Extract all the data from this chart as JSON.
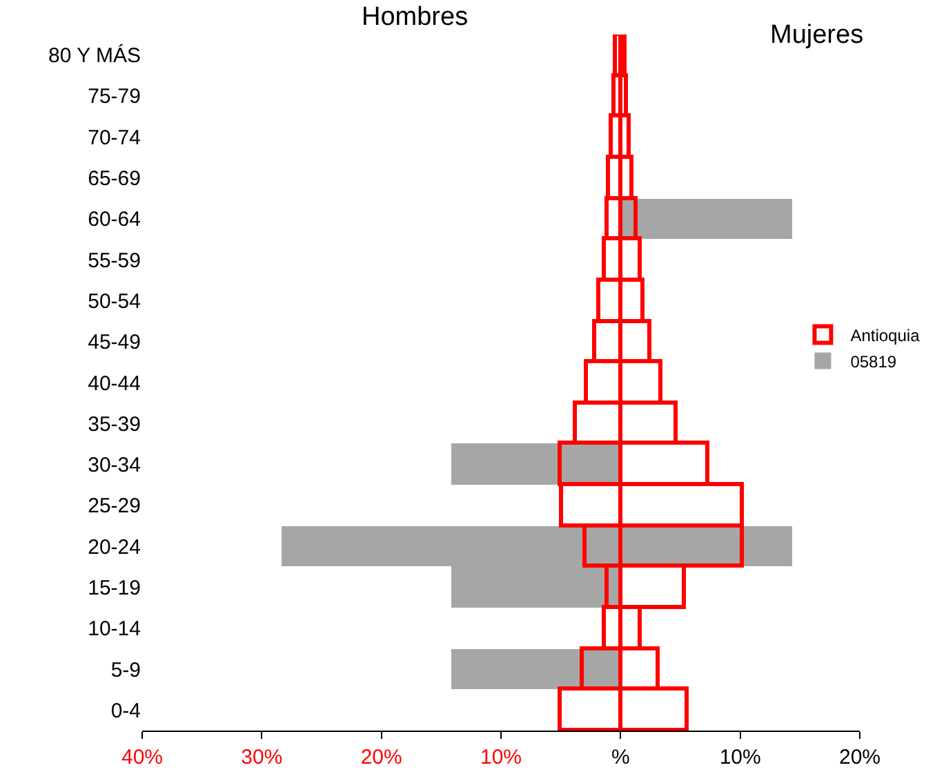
{
  "chart_data": {
    "type": "bar",
    "orientation": "horizontal",
    "annotations": [
      "Hombres",
      "Mujeres"
    ],
    "categories": [
      "80 Y MÁS",
      "75-79",
      "70-74",
      "65-69",
      "60-64",
      "55-59",
      "50-54",
      "45-49",
      "40-44",
      "35-39",
      "30-34",
      "25-29",
      "20-24",
      "15-19",
      "10-14",
      "5-9",
      "0-4"
    ],
    "series": [
      {
        "name": "05819",
        "color": "#a6a6a6",
        "values": [
          null,
          null,
          null,
          null,
          null,
          null,
          null,
          null,
          null,
          null,
          -14.2,
          null,
          -28.4,
          -14.2,
          null,
          -14.2,
          null
        ]
      },
      {
        "color": "#a6a6a6",
        "values": [
          null,
          null,
          null,
          null,
          14.4,
          null,
          null,
          null,
          null,
          null,
          null,
          null,
          14.4,
          null,
          null,
          null,
          null
        ]
      },
      {
        "name": "Antioquia",
        "color": "#ff0000",
        "values": [
          -0.4,
          -0.5,
          -0.8,
          -1.0,
          -1.1,
          -1.4,
          -1.8,
          -2.1,
          -2.9,
          -3.8,
          -5.0,
          -4.9,
          -3.0,
          -1.1,
          -1.3,
          -3.2,
          -5.0
        ]
      },
      {
        "color": "#ff0000",
        "values": [
          0.4,
          0.5,
          0.7,
          1.0,
          1.3,
          1.6,
          1.9,
          2.5,
          3.4,
          4.6,
          7.3,
          10.2,
          10.2,
          5.4,
          1.7,
          3.2,
          5.6
        ]
      }
    ],
    "xlim": [
      -40,
      20
    ],
    "xticks": [
      {
        "value": -40,
        "label": "40%"
      },
      {
        "value": -30,
        "label": "30%"
      },
      {
        "value": -20,
        "label": "20%"
      },
      {
        "value": -10,
        "label": "10%"
      },
      {
        "value": 0,
        "label": "%"
      },
      {
        "value": 10,
        "label": "10%"
      },
      {
        "value": 20,
        "label": "20%"
      }
    ],
    "grid": false,
    "legend": "right"
  }
}
